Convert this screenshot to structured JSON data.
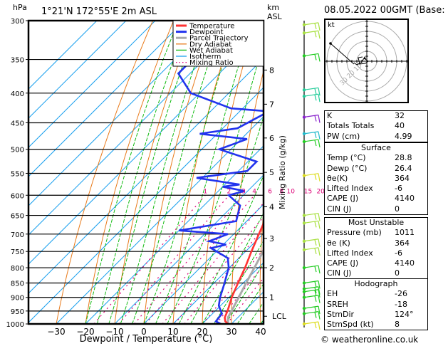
{
  "header": {
    "pressure_unit": "hPa",
    "location": "1°21'N  172°55'E  2m  ASL",
    "km_unit": "km",
    "asl_unit": "ASL",
    "datetime": "08.05.2022  00GMT  (Base: 00)"
  },
  "chart_data": {
    "type": "line",
    "title": "1°21'N 172°55'E 2m ASL",
    "xlabel": "Dewpoint / Temperature (°C)",
    "ylabel": "hPa",
    "y2label": "Mixing Ratio (g/kg)",
    "xlim": [
      -40,
      40
    ],
    "ylim": [
      1000,
      300
    ],
    "x_ticks": [
      -30,
      -20,
      -10,
      0,
      10,
      20,
      30,
      40
    ],
    "y_ticks": [
      300,
      350,
      400,
      450,
      500,
      550,
      600,
      650,
      700,
      750,
      800,
      850,
      900,
      950,
      1000
    ],
    "km_ticks": [
      {
        "label": "8",
        "p": 365
      },
      {
        "label": "7",
        "p": 418
      },
      {
        "label": "6",
        "p": 478
      },
      {
        "label": "5",
        "p": 548
      },
      {
        "label": "4",
        "p": 628
      },
      {
        "label": "3",
        "p": 712
      },
      {
        "label": "2",
        "p": 800
      },
      {
        "label": "1",
        "p": 900
      },
      {
        "label": "LCL",
        "p": 970
      }
    ],
    "mixing_ratio_labels": [
      "1",
      "2",
      "3",
      "4",
      "6",
      "8",
      "10",
      "15",
      "20",
      "25"
    ],
    "mixing_ratio_label_pressure": 600,
    "legend": {
      "position": "top-right",
      "entries": [
        {
          "name": "Temperature",
          "color": "#ff3333",
          "style": "solid-thick"
        },
        {
          "name": "Dewpoint",
          "color": "#2233ee",
          "style": "solid-thick"
        },
        {
          "name": "Parcel Trajectory",
          "color": "#aaaaaa",
          "style": "solid-thick"
        },
        {
          "name": "Dry Adiabat",
          "color": "#e87a1a",
          "style": "solid"
        },
        {
          "name": "Wet Adiabat",
          "color": "#11bb11",
          "style": "dashed"
        },
        {
          "name": "Isotherm",
          "color": "#1aa0ee",
          "style": "solid"
        },
        {
          "name": "Mixing Ratio",
          "color": "#dd0077",
          "style": "dotted"
        }
      ]
    },
    "series": [
      {
        "name": "Temperature",
        "points": [
          {
            "p": 1000,
            "t": 28.8
          },
          {
            "p": 990,
            "t": 27.0
          },
          {
            "p": 975,
            "t": 25.5
          },
          {
            "p": 950,
            "t": 24.2
          },
          {
            "p": 900,
            "t": 21.0
          },
          {
            "p": 850,
            "t": 18.2
          },
          {
            "p": 800,
            "t": 15.4
          },
          {
            "p": 750,
            "t": 12.0
          },
          {
            "p": 700,
            "t": 8.6
          },
          {
            "p": 650,
            "t": 5.0
          },
          {
            "p": 600,
            "t": 1.2
          },
          {
            "p": 550,
            "t": -3.4
          },
          {
            "p": 500,
            "t": -8.0
          },
          {
            "p": 460,
            "t": -11.6
          },
          {
            "p": 430,
            "t": -16.0
          },
          {
            "p": 400,
            "t": -21.0
          },
          {
            "p": 370,
            "t": -25.6
          },
          {
            "p": 340,
            "t": -30.0
          },
          {
            "p": 300,
            "t": -36.0
          }
        ]
      },
      {
        "name": "Dewpoint",
        "points": [
          {
            "p": 1000,
            "t": 26.4
          },
          {
            "p": 990,
            "t": 23.8
          },
          {
            "p": 960,
            "t": 23.2
          },
          {
            "p": 930,
            "t": 19.4
          },
          {
            "p": 900,
            "t": 17.0
          },
          {
            "p": 850,
            "t": 13.6
          },
          {
            "p": 800,
            "t": 9.8
          },
          {
            "p": 770,
            "t": 6.2
          },
          {
            "p": 740,
            "t": -3.0
          },
          {
            "p": 730,
            "t": 1.0
          },
          {
            "p": 720,
            "t": -6.0
          },
          {
            "p": 700,
            "t": -2.0
          },
          {
            "p": 690,
            "t": -20.0
          },
          {
            "p": 665,
            "t": -3.6
          },
          {
            "p": 625,
            "t": -7.6
          },
          {
            "p": 600,
            "t": -15.0
          },
          {
            "p": 590,
            "t": -11.0
          },
          {
            "p": 580,
            "t": -20.0
          },
          {
            "p": 575,
            "t": -15.0
          },
          {
            "p": 560,
            "t": -32.0
          },
          {
            "p": 545,
            "t": -17.0
          },
          {
            "p": 525,
            "t": -17.0
          },
          {
            "p": 500,
            "t": -34.0
          },
          {
            "p": 480,
            "t": -28.0
          },
          {
            "p": 470,
            "t": -46.0
          },
          {
            "p": 460,
            "t": -35.0
          },
          {
            "p": 430,
            "t": -30.0
          },
          {
            "p": 425,
            "t": -44.0
          },
          {
            "p": 400,
            "t": -63.0
          },
          {
            "p": 370,
            "t": -74.0
          },
          {
            "p": 350,
            "t": -74.0
          },
          {
            "p": 300,
            "t": -78.0
          }
        ]
      },
      {
        "name": "Parcel Trajectory",
        "points": [
          {
            "p": 1000,
            "t": 28.8
          },
          {
            "p": 975,
            "t": 26.6
          },
          {
            "p": 950,
            "t": 25.6
          },
          {
            "p": 900,
            "t": 23.4
          },
          {
            "p": 850,
            "t": 21.0
          },
          {
            "p": 800,
            "t": 18.6
          },
          {
            "p": 750,
            "t": 16.0
          },
          {
            "p": 700,
            "t": 13.2
          },
          {
            "p": 650,
            "t": 10.0
          },
          {
            "p": 600,
            "t": 6.8
          },
          {
            "p": 550,
            "t": 3.0
          },
          {
            "p": 500,
            "t": -1.2
          },
          {
            "p": 450,
            "t": -6.4
          },
          {
            "p": 400,
            "t": -12.2
          },
          {
            "p": 370,
            "t": -16.6
          }
        ]
      }
    ]
  },
  "hodograph": {
    "unit_label": "kt",
    "ring_labels": [
      "10",
      "20",
      "30"
    ],
    "trace_description": "small loop near origin with long segment toward upper-left"
  },
  "wind_barbs": [
    {
      "p": 305,
      "color": "#a8e040"
    },
    {
      "p": 315,
      "color": "#a8e040"
    },
    {
      "p": 345,
      "color": "#22cc22"
    },
    {
      "p": 395,
      "color": "#22cc99"
    },
    {
      "p": 405,
      "color": "#22cc99"
    },
    {
      "p": 440,
      "color": "#8822cc"
    },
    {
      "p": 470,
      "color": "#22bbcc"
    },
    {
      "p": 485,
      "color": "#22cc22"
    },
    {
      "p": 555,
      "color": "#dddd22"
    },
    {
      "p": 650,
      "color": "#a8e040"
    },
    {
      "p": 670,
      "color": "#a8e040"
    },
    {
      "p": 720,
      "color": "#a8e040"
    },
    {
      "p": 745,
      "color": "#a8e040"
    },
    {
      "p": 800,
      "color": "#22cc22"
    },
    {
      "p": 850,
      "color": "#22cc22"
    },
    {
      "p": 870,
      "color": "#22cc22"
    },
    {
      "p": 880,
      "color": "#22cc22"
    },
    {
      "p": 900,
      "color": "#22cc22"
    },
    {
      "p": 940,
      "color": "#22cc22"
    },
    {
      "p": 960,
      "color": "#22cc22"
    },
    {
      "p": 1000,
      "color": "#dddd22"
    }
  ],
  "indices": {
    "top": [
      {
        "label": "K",
        "value": "32"
      },
      {
        "label": "Totals Totals",
        "value": "40"
      },
      {
        "label": "PW (cm)",
        "value": "4.99"
      }
    ],
    "surface": {
      "title": "Surface",
      "rows": [
        {
          "label": "Temp (°C)",
          "value": "28.8"
        },
        {
          "label": "Dewp (°C)",
          "value": "26.4"
        },
        {
          "label": "θe(K)",
          "value": "364"
        },
        {
          "label": "Lifted Index",
          "value": "-6"
        },
        {
          "label": "CAPE (J)",
          "value": "4140"
        },
        {
          "label": "CIN (J)",
          "value": "0"
        }
      ]
    },
    "most_unstable": {
      "title": "Most Unstable",
      "rows": [
        {
          "label": "Pressure (mb)",
          "value": "1011"
        },
        {
          "label": "θe (K)",
          "value": "364"
        },
        {
          "label": "Lifted Index",
          "value": "-6"
        },
        {
          "label": "CAPE (J)",
          "value": "4140"
        },
        {
          "label": "CIN (J)",
          "value": "0"
        }
      ]
    },
    "hodograph": {
      "title": "Hodograph",
      "rows": [
        {
          "label": "EH",
          "value": "-26"
        },
        {
          "label": "SREH",
          "value": "-18"
        },
        {
          "label": "StmDir",
          "value": "124°"
        },
        {
          "label": "StmSpd (kt)",
          "value": "8"
        }
      ]
    }
  },
  "copyright": "© weatheronline.co.uk"
}
